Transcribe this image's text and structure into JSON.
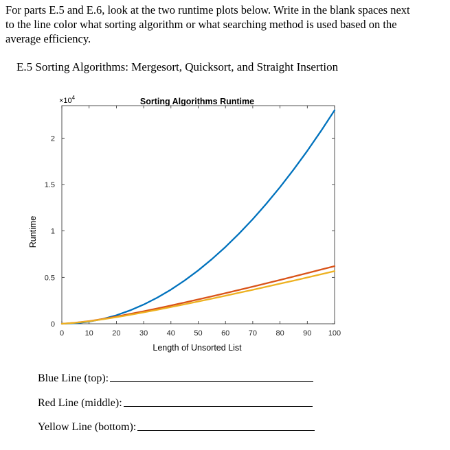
{
  "intro": {
    "lines": [
      "For parts E.5 and E.6, look at the two runtime plots below. Write in the blank spaces next",
      "to the line color what sorting algorithm or what searching method is used based on the",
      "average efficiency."
    ]
  },
  "section": {
    "title": "E.5  Sorting Algorithms: Mergesort, Quicksort, and Straight Insertion"
  },
  "chart_data": {
    "type": "line",
    "title": "Sorting Algorithms Runtime",
    "xlabel": "Length of Unsorted List",
    "ylabel": "Runtime",
    "y_multiplier": "×10",
    "y_multiplier_exp": "4",
    "xlim": [
      0,
      100
    ],
    "ylim": [
      0,
      23500
    ],
    "xticks": [
      0,
      10,
      20,
      30,
      40,
      50,
      60,
      70,
      80,
      90,
      100
    ],
    "yticks": [
      0,
      5000,
      10000,
      15000,
      20000
    ],
    "ytick_labels": [
      "0",
      "0.5",
      "1",
      "1.5",
      "2"
    ],
    "grid": false,
    "x": [
      0,
      5,
      10,
      15,
      20,
      25,
      30,
      35,
      40,
      45,
      50,
      55,
      60,
      65,
      70,
      75,
      80,
      85,
      90,
      95,
      100
    ],
    "series": [
      {
        "color": "#0072BD",
        "values": [
          0,
          60,
          230,
          520,
          920,
          1440,
          2070,
          2820,
          3680,
          4660,
          5750,
          6960,
          8280,
          9720,
          11270,
          12940,
          14720,
          16620,
          18630,
          20760,
          23000
        ]
      },
      {
        "color": "#D95319",
        "values": [
          0,
          120,
          290,
          520,
          780,
          1060,
          1350,
          1650,
          1970,
          2290,
          2620,
          2960,
          3300,
          3650,
          4000,
          4360,
          4720,
          5090,
          5460,
          5840,
          6210
        ]
      },
      {
        "color": "#EDB120",
        "values": [
          0,
          110,
          270,
          480,
          710,
          960,
          1230,
          1510,
          1800,
          2100,
          2400,
          2710,
          3020,
          3340,
          3660,
          3990,
          4320,
          4650,
          4990,
          5330,
          5670
        ]
      }
    ]
  },
  "answers": {
    "blue_label": "Blue Line (top):",
    "red_label": "Red Line (middle):",
    "yellow_label": "Yellow Line (bottom):"
  }
}
